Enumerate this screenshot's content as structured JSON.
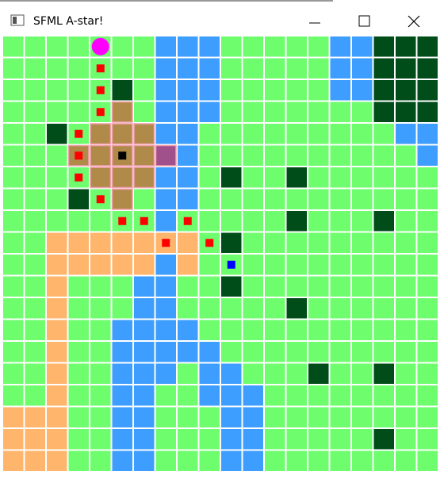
{
  "window": {
    "title": "SFML A-star!"
  }
}
